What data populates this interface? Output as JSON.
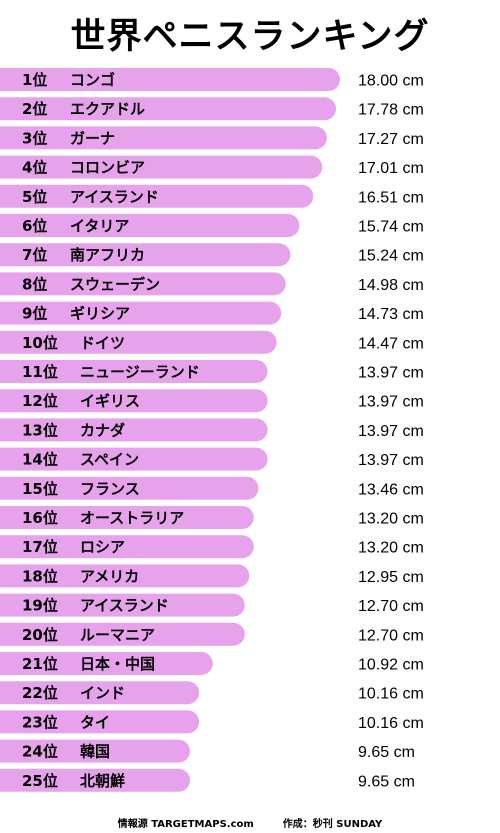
{
  "title": "世界ペニスランキング",
  "colors": {
    "bar": "#e6a3ec"
  },
  "footer": {
    "source": "情報源 TARGETMAPS.com",
    "author": "作成：秒刊 SUNDAY"
  },
  "chart_data": {
    "type": "bar",
    "orientation": "horizontal",
    "title": "世界ペニスランキング",
    "xlim": [
      0,
      18
    ],
    "grid": false,
    "legend": "none",
    "ranks": [
      "1位",
      "2位",
      "3位",
      "4位",
      "5位",
      "6位",
      "7位",
      "8位",
      "9位",
      "10位",
      "11位",
      "12位",
      "13位",
      "14位",
      "15位",
      "16位",
      "17位",
      "18位",
      "19位",
      "20位",
      "21位",
      "22位",
      "23位",
      "24位",
      "25位"
    ],
    "categories": [
      "コンゴ",
      "エクアドル",
      "ガーナ",
      "コロンビア",
      "アイスランド",
      "イタリア",
      "南アフリカ",
      "スウェーデン",
      "ギリシア",
      "ドイツ",
      "ニュージーランド",
      "イギリス",
      "カナダ",
      "スペイン",
      "フランス",
      "オーストラリア",
      "ロシア",
      "アメリカ",
      "アイスランド",
      "ルーマニア",
      "日本・中国",
      "インド",
      "タイ",
      "韓国",
      "北朝鮮"
    ],
    "values": [
      18.0,
      17.78,
      17.27,
      17.01,
      16.51,
      15.74,
      15.24,
      14.98,
      14.73,
      14.47,
      13.97,
      13.97,
      13.97,
      13.97,
      13.46,
      13.2,
      13.2,
      12.95,
      12.7,
      12.7,
      10.92,
      10.16,
      10.16,
      9.65,
      9.65
    ],
    "value_labels": [
      "18.00 cm",
      "17.78 cm",
      "17.27 cm",
      "17.01 cm",
      "16.51 cm",
      "15.74 cm",
      "15.24  cm",
      "14.98  cm",
      "14.73 cm",
      "14.47 cm",
      "13.97 cm",
      "13.97 cm",
      "13.97 cm",
      "13.97 cm",
      "13.46 cm",
      "13.20 cm",
      "13.20 cm",
      "12.95 cm",
      "12.70 cm",
      "12.70 cm",
      "10.92 cm",
      "10.16 cm",
      "10.16 cm",
      "9.65 cm",
      "9.65 cm"
    ]
  }
}
